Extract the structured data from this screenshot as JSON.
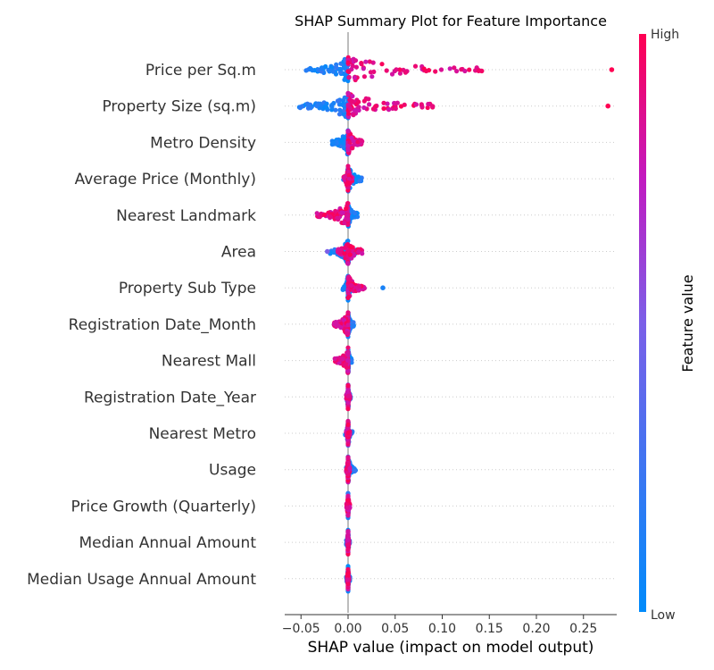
{
  "chart_data": {
    "type": "scatter",
    "title": "SHAP Summary Plot for Feature Importance",
    "xlabel": "SHAP value (impact on model output)",
    "xlim": [
      -0.068,
      0.29
    ],
    "xticks": [
      -0.05,
      0.0,
      0.05,
      0.1,
      0.15,
      0.2,
      0.25
    ],
    "xtick_labels": [
      "−0.05",
      "0.00",
      "0.05",
      "0.10",
      "0.15",
      "0.20",
      "0.25"
    ],
    "colorbar": {
      "title": "Feature value",
      "high_label": "High",
      "low_label": "Low",
      "high_color": "#ff0052",
      "low_color": "#008bfb"
    },
    "zero_line": true,
    "features": [
      {
        "name": "Price per Sq.m",
        "low_range": [
          -0.045,
          0.0
        ],
        "high_range": [
          0.0,
          0.145
        ],
        "outliers": [
          {
            "x": 0.28,
            "v": 1.0
          }
        ]
      },
      {
        "name": "Property Size (sq.m)",
        "low_range": [
          -0.052,
          0.0
        ],
        "high_range": [
          0.0,
          0.105
        ],
        "outliers": [
          {
            "x": 0.276,
            "v": 1.0
          }
        ]
      },
      {
        "name": "Metro Density",
        "low_range": [
          -0.018,
          0.0
        ],
        "high_range": [
          0.0,
          0.016
        ],
        "outliers": []
      },
      {
        "name": "Average Price (Monthly)",
        "low_range": [
          -0.005,
          0.015
        ],
        "high_range": [
          -0.005,
          0.005
        ],
        "outliers": []
      },
      {
        "name": "Nearest Landmark",
        "low_range": [
          0.0,
          0.01
        ],
        "high_range": [
          -0.033,
          0.0
        ],
        "outliers": []
      },
      {
        "name": "Area",
        "low_range": [
          -0.02,
          0.01
        ],
        "high_range": [
          -0.012,
          0.016
        ],
        "outliers": [
          {
            "x": -0.022,
            "v": 0.5
          }
        ]
      },
      {
        "name": "Property Sub Type",
        "low_range": [
          -0.006,
          0.005
        ],
        "high_range": [
          0.0,
          0.018
        ],
        "outliers": [
          {
            "x": 0.037,
            "v": 0.1
          }
        ]
      },
      {
        "name": "Registration Date_Month",
        "low_range": [
          0.0,
          0.006
        ],
        "high_range": [
          -0.016,
          0.0
        ],
        "outliers": []
      },
      {
        "name": "Nearest Mall",
        "low_range": [
          0.0,
          0.004
        ],
        "high_range": [
          -0.014,
          0.0
        ],
        "outliers": []
      },
      {
        "name": "Registration Date_Year",
        "low_range": [
          -0.002,
          0.003
        ],
        "high_range": [
          -0.002,
          0.002
        ],
        "outliers": []
      },
      {
        "name": "Nearest Metro",
        "low_range": [
          -0.003,
          0.005
        ],
        "high_range": [
          -0.002,
          0.002
        ],
        "outliers": []
      },
      {
        "name": "Usage",
        "low_range": [
          -0.002,
          0.008
        ],
        "high_range": [
          -0.002,
          0.002
        ],
        "outliers": []
      },
      {
        "name": "Price Growth (Quarterly)",
        "low_range": [
          -0.001,
          0.001
        ],
        "high_range": [
          -0.002,
          0.002
        ],
        "outliers": []
      },
      {
        "name": "Median Annual Amount",
        "low_range": [
          -0.002,
          0.002
        ],
        "high_range": [
          -0.001,
          0.001
        ],
        "outliers": []
      },
      {
        "name": "Median Usage Annual Amount",
        "low_range": [
          -0.002,
          0.002
        ],
        "high_range": [
          -0.001,
          0.001
        ],
        "outliers": []
      }
    ]
  }
}
